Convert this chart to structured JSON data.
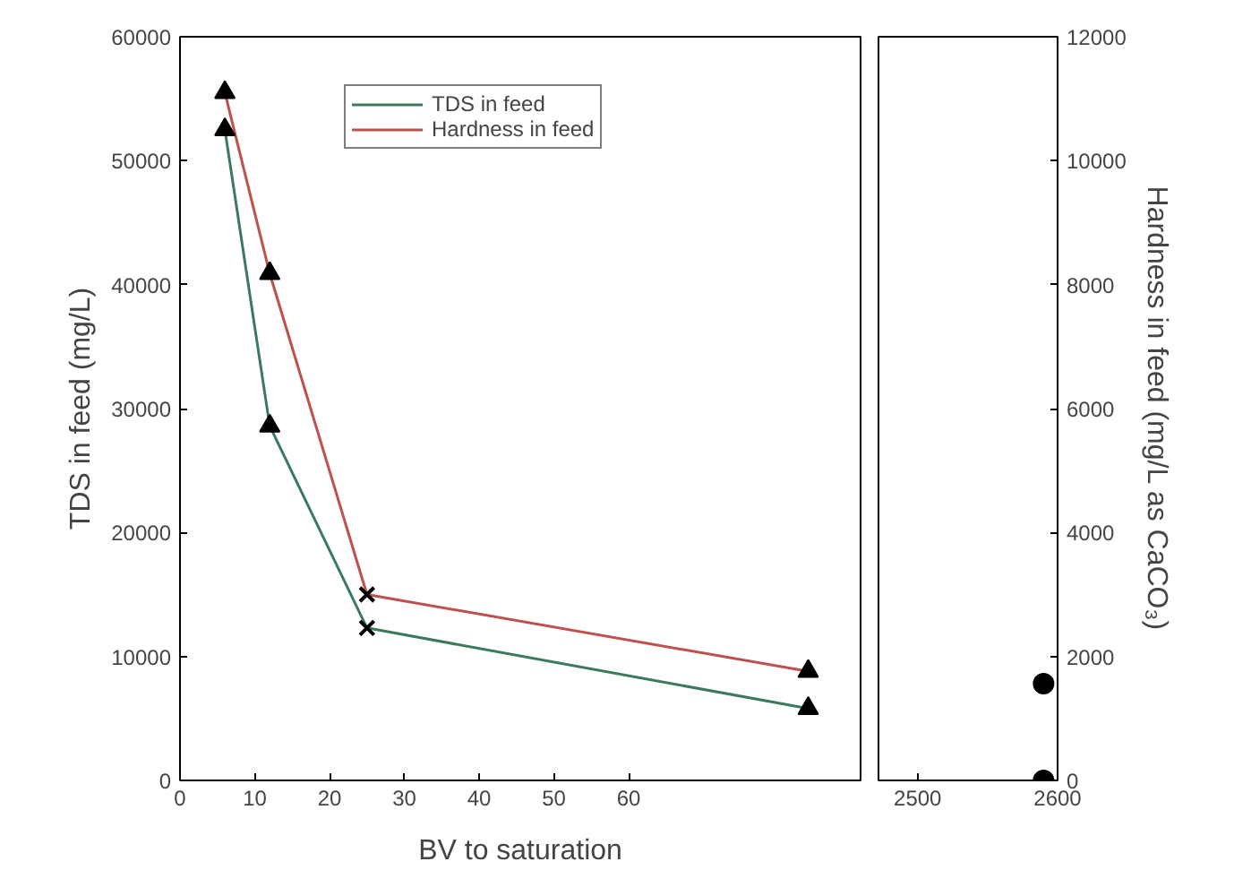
{
  "chart_data": [
    {
      "type": "line",
      "xlabel": "BV to saturation",
      "ylabel": "TDS in feed (mg/L)",
      "xlim": [
        0,
        91
      ],
      "xticks": [
        0,
        10,
        20,
        30,
        40,
        50,
        60
      ],
      "ylim": [
        0,
        60000
      ],
      "yticks": [
        0,
        10000,
        20000,
        30000,
        40000,
        50000,
        60000
      ],
      "y2lim": [
        0,
        12000
      ],
      "legend": "top",
      "grid": false,
      "series": [
        {
          "name": "TDS in feed",
          "color": "#3b7a5c",
          "x": [
            6,
            12,
            25,
            84
          ],
          "values": [
            52500,
            28600,
            12300,
            5800
          ],
          "marker": "none"
        },
        {
          "name": "Hardness in feed",
          "color": "#c0504d",
          "axis": "y2",
          "x": [
            6,
            12,
            25,
            84
          ],
          "values": [
            11100,
            8180,
            3000,
            1760
          ],
          "marker": "none"
        },
        {
          "type": "scatter",
          "color": "#000000",
          "x": [
            6,
            12,
            84
          ],
          "values": [
            52500,
            28600,
            5800
          ],
          "marker": "triangle"
        },
        {
          "type": "scatter",
          "color": "#000000",
          "x": [
            25
          ],
          "values": [
            12300
          ],
          "marker": "cross"
        },
        {
          "type": "scatter",
          "color": "#000000",
          "axis": "y2",
          "x": [
            6,
            12,
            84
          ],
          "values": [
            11100,
            8180,
            1760
          ],
          "marker": "triangle"
        },
        {
          "type": "scatter",
          "color": "#000000",
          "axis": "y2",
          "x": [
            25
          ],
          "values": [
            3000
          ],
          "marker": "cross"
        }
      ]
    },
    {
      "type": "scatter",
      "y2label": "Hardness in feed (mg/L as CaCO₃)",
      "xlim": [
        2472,
        2600
      ],
      "xticks": [
        2500,
        2600
      ],
      "ylim": [
        0,
        60000
      ],
      "y2lim": [
        0,
        12000
      ],
      "y2ticks": [
        0,
        2000,
        4000,
        6000,
        8000,
        10000,
        12000
      ],
      "grid": false,
      "series": [
        {
          "color": "#000000",
          "x": [
            2590
          ],
          "values": [
            7800
          ],
          "marker": "circle"
        },
        {
          "color": "#000000",
          "axis": "y2",
          "x": [
            2590
          ],
          "values": [
            0
          ],
          "marker": "circle"
        }
      ]
    }
  ]
}
